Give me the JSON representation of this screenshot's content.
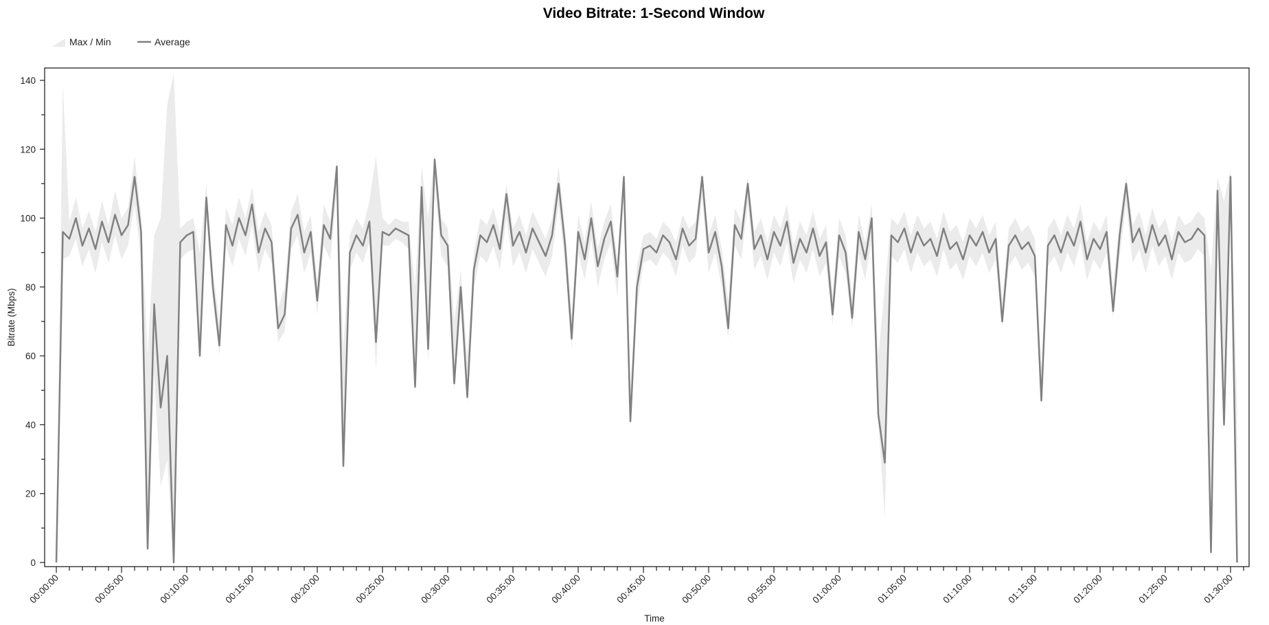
{
  "chart_data": {
    "type": "line",
    "title": "Video Bitrate: 1-Second Window",
    "xlabel": "Time",
    "ylabel": "Bitrate (Mbps)",
    "ylim": [
      0,
      140
    ],
    "yticks": [
      "0",
      "20",
      "40",
      "60",
      "80",
      "100",
      "120",
      "140"
    ],
    "xticks": [
      "00:00:00",
      "00:05:00",
      "00:10:00",
      "00:15:00",
      "00:20:00",
      "00:25:00",
      "00:30:00",
      "00:35:00",
      "00:40:00",
      "00:45:00",
      "00:50:00",
      "00:55:00",
      "01:00:00",
      "01:05:00",
      "01:10:00",
      "01:15:00",
      "01:20:00",
      "01:25:00",
      "01:30:00"
    ],
    "grid": false,
    "legend": {
      "placement": "top-left",
      "entries": [
        "Max / Min",
        "Average"
      ]
    },
    "colors": {
      "average": "#808080",
      "max_min_band": "#ebebeb"
    },
    "columns": [
      "time",
      "min",
      "average",
      "max"
    ],
    "points": [
      [
        "00:00:00",
        0,
        0,
        0
      ],
      [
        "00:00:30",
        88,
        96,
        139
      ],
      [
        "00:01:00",
        89,
        94,
        99
      ],
      [
        "00:01:30",
        94,
        100,
        106
      ],
      [
        "00:02:00",
        86,
        92,
        97
      ],
      [
        "00:02:30",
        91,
        97,
        102
      ],
      [
        "00:03:00",
        84,
        91,
        96
      ],
      [
        "00:03:30",
        93,
        99,
        105
      ],
      [
        "00:04:00",
        87,
        93,
        98
      ],
      [
        "00:04:30",
        95,
        101,
        108
      ],
      [
        "00:05:00",
        88,
        95,
        100
      ],
      [
        "00:05:30",
        92,
        98,
        103
      ],
      [
        "00:06:00",
        104,
        112,
        118
      ],
      [
        "00:06:30",
        88,
        96,
        101
      ],
      [
        "00:07:00",
        2,
        4,
        60
      ],
      [
        "00:07:30",
        55,
        75,
        95
      ],
      [
        "00:08:00",
        22,
        45,
        100
      ],
      [
        "00:08:30",
        30,
        60,
        133
      ],
      [
        "00:09:00",
        0,
        0,
        142
      ],
      [
        "00:09:30",
        88,
        93,
        97
      ],
      [
        "00:10:00",
        90,
        95,
        99
      ],
      [
        "00:10:30",
        91,
        96,
        100
      ],
      [
        "00:11:00",
        58,
        60,
        90
      ],
      [
        "00:11:30",
        100,
        106,
        110
      ],
      [
        "00:12:00",
        76,
        80,
        85
      ],
      [
        "00:12:30",
        60,
        63,
        70
      ],
      [
        "00:13:00",
        92,
        98,
        103
      ],
      [
        "00:13:30",
        86,
        92,
        98
      ],
      [
        "00:14:00",
        94,
        100,
        106
      ],
      [
        "00:14:30",
        89,
        95,
        100
      ],
      [
        "00:15:00",
        98,
        104,
        109
      ],
      [
        "00:15:30",
        84,
        90,
        96
      ],
      [
        "00:16:00",
        91,
        97,
        102
      ],
      [
        "00:16:30",
        87,
        93,
        98
      ],
      [
        "00:17:00",
        64,
        68,
        74
      ],
      [
        "00:17:30",
        67,
        72,
        80
      ],
      [
        "00:18:00",
        91,
        97,
        102
      ],
      [
        "00:18:30",
        95,
        101,
        107
      ],
      [
        "00:19:00",
        84,
        90,
        96
      ],
      [
        "00:19:30",
        90,
        96,
        101
      ],
      [
        "00:20:00",
        72,
        76,
        82
      ],
      [
        "00:20:30",
        92,
        98,
        104
      ],
      [
        "00:21:00",
        88,
        94,
        99
      ],
      [
        "00:21:30",
        108,
        115,
        117
      ],
      [
        "00:22:00",
        26,
        28,
        62
      ],
      [
        "00:22:30",
        85,
        90,
        95
      ],
      [
        "00:23:00",
        90,
        95,
        100
      ],
      [
        "00:23:30",
        87,
        92,
        97
      ],
      [
        "00:24:00",
        93,
        99,
        105
      ],
      [
        "00:24:30",
        56,
        64,
        118
      ],
      [
        "00:25:00",
        92,
        96,
        100
      ],
      [
        "00:25:30",
        92,
        95,
        98
      ],
      [
        "00:26:00",
        94,
        97,
        100
      ],
      [
        "00:26:30",
        93,
        96,
        99
      ],
      [
        "00:27:00",
        91,
        95,
        99
      ],
      [
        "00:27:30",
        49,
        51,
        80
      ],
      [
        "00:28:00",
        102,
        109,
        115
      ],
      [
        "00:28:30",
        58,
        62,
        100
      ],
      [
        "00:29:00",
        110,
        117,
        119
      ],
      [
        "00:29:30",
        89,
        95,
        100
      ],
      [
        "00:30:00",
        86,
        92,
        97
      ],
      [
        "00:30:30",
        50,
        52,
        70
      ],
      [
        "00:31:00",
        74,
        80,
        85
      ],
      [
        "00:31:30",
        46,
        48,
        60
      ],
      [
        "00:32:00",
        80,
        85,
        90
      ],
      [
        "00:32:30",
        89,
        95,
        100
      ],
      [
        "00:33:00",
        87,
        93,
        98
      ],
      [
        "00:33:30",
        92,
        98,
        103
      ],
      [
        "00:34:00",
        85,
        91,
        96
      ],
      [
        "00:34:30",
        100,
        107,
        110
      ],
      [
        "00:35:00",
        86,
        92,
        97
      ],
      [
        "00:35:30",
        90,
        96,
        101
      ],
      [
        "00:36:00",
        84,
        90,
        95
      ],
      [
        "00:36:30",
        91,
        97,
        102
      ],
      [
        "00:37:00",
        87,
        93,
        98
      ],
      [
        "00:37:30",
        83,
        89,
        94
      ],
      [
        "00:38:00",
        89,
        95,
        100
      ],
      [
        "00:38:30",
        104,
        110,
        115
      ],
      [
        "00:39:00",
        86,
        92,
        97
      ],
      [
        "00:39:30",
        62,
        65,
        72
      ],
      [
        "00:40:00",
        90,
        96,
        101
      ],
      [
        "00:40:30",
        82,
        88,
        93
      ],
      [
        "00:41:00",
        94,
        100,
        105
      ],
      [
        "00:41:30",
        80,
        86,
        91
      ],
      [
        "00:42:00",
        88,
        94,
        99
      ],
      [
        "00:42:30",
        93,
        99,
        104
      ],
      [
        "00:43:00",
        77,
        83,
        88
      ],
      [
        "00:43:30",
        106,
        112,
        113
      ],
      [
        "00:44:00",
        40,
        41,
        50
      ],
      [
        "00:44:30",
        74,
        80,
        86
      ],
      [
        "00:45:00",
        87,
        91,
        95
      ],
      [
        "00:45:30",
        88,
        92,
        96
      ],
      [
        "00:46:00",
        86,
        90,
        94
      ],
      [
        "00:46:30",
        90,
        95,
        99
      ],
      [
        "00:47:00",
        88,
        93,
        97
      ],
      [
        "00:47:30",
        83,
        88,
        93
      ],
      [
        "00:48:00",
        92,
        97,
        101
      ],
      [
        "00:48:30",
        87,
        92,
        97
      ],
      [
        "00:49:00",
        89,
        94,
        99
      ],
      [
        "00:49:30",
        106,
        112,
        113
      ],
      [
        "00:50:00",
        84,
        90,
        95
      ],
      [
        "00:50:30",
        90,
        96,
        101
      ],
      [
        "00:51:00",
        80,
        86,
        91
      ],
      [
        "00:51:30",
        65,
        68,
        76
      ],
      [
        "00:52:00",
        92,
        98,
        103
      ],
      [
        "00:52:30",
        88,
        94,
        99
      ],
      [
        "00:53:00",
        104,
        110,
        112
      ],
      [
        "00:53:30",
        85,
        91,
        96
      ],
      [
        "00:54:00",
        89,
        95,
        100
      ],
      [
        "00:54:30",
        82,
        88,
        93
      ],
      [
        "00:55:00",
        90,
        96,
        101
      ],
      [
        "00:55:30",
        86,
        92,
        97
      ],
      [
        "00:56:00",
        93,
        99,
        104
      ],
      [
        "00:56:30",
        81,
        87,
        92
      ],
      [
        "00:57:00",
        88,
        94,
        99
      ],
      [
        "00:57:30",
        84,
        90,
        95
      ],
      [
        "00:58:00",
        91,
        97,
        102
      ],
      [
        "00:58:30",
        83,
        89,
        94
      ],
      [
        "00:59:00",
        87,
        93,
        98
      ],
      [
        "00:59:30",
        69,
        72,
        78
      ],
      [
        "01:00:00",
        89,
        95,
        100
      ],
      [
        "01:00:30",
        84,
        90,
        95
      ],
      [
        "01:01:00",
        68,
        71,
        77
      ],
      [
        "01:01:30",
        90,
        96,
        101
      ],
      [
        "01:02:00",
        82,
        88,
        93
      ],
      [
        "01:02:30",
        94,
        100,
        104
      ],
      [
        "01:03:00",
        41,
        43,
        60
      ],
      [
        "01:03:30",
        13,
        29,
        80
      ],
      [
        "01:04:00",
        89,
        95,
        100
      ],
      [
        "01:04:30",
        87,
        93,
        98
      ],
      [
        "01:05:00",
        91,
        97,
        102
      ],
      [
        "01:05:30",
        84,
        90,
        95
      ],
      [
        "01:06:00",
        90,
        96,
        101
      ],
      [
        "01:06:30",
        86,
        92,
        97
      ],
      [
        "01:07:00",
        88,
        94,
        99
      ],
      [
        "01:07:30",
        83,
        89,
        94
      ],
      [
        "01:08:00",
        91,
        97,
        102
      ],
      [
        "01:08:30",
        85,
        91,
        96
      ],
      [
        "01:09:00",
        87,
        93,
        98
      ],
      [
        "01:09:30",
        82,
        88,
        93
      ],
      [
        "01:10:00",
        89,
        95,
        100
      ],
      [
        "01:10:30",
        86,
        92,
        97
      ],
      [
        "01:11:00",
        90,
        96,
        101
      ],
      [
        "01:11:30",
        84,
        90,
        95
      ],
      [
        "01:12:00",
        88,
        94,
        99
      ],
      [
        "01:12:30",
        68,
        70,
        76
      ],
      [
        "01:13:00",
        86,
        92,
        97
      ],
      [
        "01:13:30",
        89,
        95,
        100
      ],
      [
        "01:14:00",
        85,
        91,
        96
      ],
      [
        "01:14:30",
        87,
        93,
        98
      ],
      [
        "01:15:00",
        83,
        89,
        94
      ],
      [
        "01:15:30",
        45,
        47,
        56
      ],
      [
        "01:16:00",
        86,
        92,
        97
      ],
      [
        "01:16:30",
        89,
        95,
        100
      ],
      [
        "01:17:00",
        84,
        90,
        95
      ],
      [
        "01:17:30",
        90,
        96,
        101
      ],
      [
        "01:18:00",
        86,
        92,
        97
      ],
      [
        "01:18:30",
        93,
        99,
        104
      ],
      [
        "01:19:00",
        82,
        88,
        93
      ],
      [
        "01:19:30",
        88,
        94,
        99
      ],
      [
        "01:20:00",
        85,
        91,
        96
      ],
      [
        "01:20:30",
        90,
        96,
        101
      ],
      [
        "01:21:00",
        71,
        73,
        80
      ],
      [
        "01:21:30",
        89,
        95,
        100
      ],
      [
        "01:22:00",
        104,
        110,
        112
      ],
      [
        "01:22:30",
        87,
        93,
        98
      ],
      [
        "01:23:00",
        91,
        97,
        102
      ],
      [
        "01:23:30",
        84,
        90,
        95
      ],
      [
        "01:24:00",
        92,
        98,
        103
      ],
      [
        "01:24:30",
        86,
        92,
        97
      ],
      [
        "01:25:00",
        89,
        95,
        100
      ],
      [
        "01:25:30",
        82,
        88,
        93
      ],
      [
        "01:26:00",
        90,
        96,
        101
      ],
      [
        "01:26:30",
        87,
        93,
        98
      ],
      [
        "01:27:00",
        88,
        94,
        99
      ],
      [
        "01:27:30",
        91,
        97,
        102
      ],
      [
        "01:28:00",
        89,
        95,
        100
      ],
      [
        "01:28:30",
        0,
        3,
        85
      ],
      [
        "01:29:00",
        102,
        108,
        112
      ],
      [
        "01:29:30",
        38,
        40,
        105
      ],
      [
        "01:30:00",
        106,
        112,
        114
      ],
      [
        "01:30:30",
        0,
        0,
        45
      ]
    ]
  }
}
